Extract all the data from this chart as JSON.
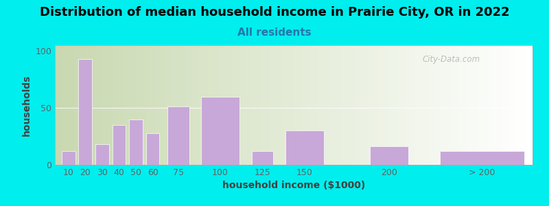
{
  "title": "Distribution of median household income in Prairie City, OR in 2022",
  "subtitle": "All residents",
  "xlabel": "household income ($1000)",
  "ylabel": "households",
  "bar_labels": [
    "10",
    "20",
    "30",
    "40",
    "50",
    "60",
    "75",
    "100",
    "125",
    "150",
    "200",
    "> 200"
  ],
  "bar_values": [
    12,
    93,
    18,
    35,
    40,
    28,
    51,
    60,
    12,
    30,
    16,
    12
  ],
  "bar_color": "#C8A8D8",
  "background_outer": "#00EEEE",
  "background_inner_left": "#C8D8B0",
  "background_inner_right": "#FFFFFF",
  "yticks": [
    0,
    50,
    100
  ],
  "ylim": [
    0,
    105
  ],
  "tick_label_fontsize": 9,
  "title_fontsize": 13,
  "subtitle_fontsize": 11,
  "axis_label_fontsize": 10,
  "watermark_text": "City-Data.com",
  "x_centers": [
    10,
    20,
    30,
    40,
    50,
    60,
    75,
    100,
    125,
    150,
    200,
    255
  ],
  "x_widths": [
    8,
    8,
    8,
    8,
    8,
    8,
    13,
    23,
    13,
    23,
    23,
    50
  ],
  "xlim": [
    2,
    285
  ],
  "x_tick_positions": [
    10,
    20,
    30,
    40,
    50,
    60,
    75,
    100,
    125,
    150,
    200,
    255
  ]
}
